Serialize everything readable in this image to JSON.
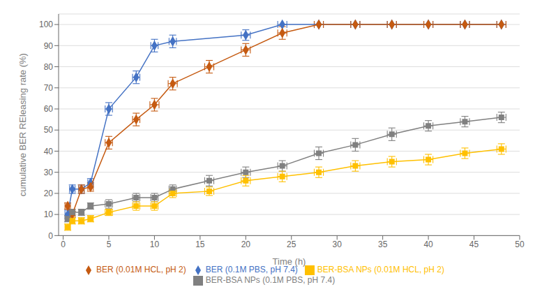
{
  "chart_data": {
    "type": "line",
    "xlabel": "Time (h)",
    "ylabel": "cumulative BER REleasing rate (%)",
    "xlim": [
      -0.5,
      50
    ],
    "ylim": [
      0,
      105
    ],
    "xticks": [
      0,
      5,
      10,
      15,
      20,
      25,
      30,
      35,
      40,
      45,
      50
    ],
    "yticks": [
      0,
      10,
      20,
      30,
      40,
      50,
      60,
      70,
      80,
      90,
      100
    ],
    "grid": true,
    "series": [
      {
        "name": "BER (0.1M PBS, pH 7.4)",
        "color": "#4472C4",
        "marker": "diamond",
        "x": [
          0.5,
          1,
          2,
          3,
          5,
          8,
          10,
          12,
          20,
          24,
          28,
          32,
          36,
          40,
          44,
          48
        ],
        "values": [
          10,
          22,
          22,
          25,
          60,
          75,
          90,
          92,
          95,
          100,
          100,
          100,
          100,
          100,
          100,
          100
        ],
        "xerr": [
          0.3,
          0.3,
          0.3,
          0.3,
          0.4,
          0.4,
          0.4,
          0.4,
          0.5,
          0.5,
          0.5,
          0.5,
          0.5,
          0.5,
          0.5,
          0.5
        ],
        "yerr": [
          2,
          2,
          2,
          2,
          3,
          3,
          3,
          3,
          2.5,
          0,
          0,
          0,
          0,
          0,
          0,
          0
        ]
      },
      {
        "name": "BER (0.01M HCL, pH 2)",
        "color": "#C55A11",
        "marker": "diamond",
        "x": [
          0.5,
          1,
          2,
          3,
          5,
          8,
          10,
          12,
          16,
          20,
          24,
          28,
          32,
          36,
          40,
          44,
          48
        ],
        "values": [
          14,
          10,
          22,
          23,
          44,
          55,
          62,
          72,
          80,
          88,
          96,
          100,
          100,
          100,
          100,
          100,
          100
        ],
        "xerr": [
          0.3,
          0.3,
          0.3,
          0.3,
          0.4,
          0.4,
          0.5,
          0.5,
          0.5,
          0.5,
          0.5,
          0.5,
          0.5,
          0.5,
          0.5,
          0.5,
          0.5
        ],
        "yerr": [
          1.5,
          1.5,
          2,
          2,
          3,
          3,
          3,
          3,
          3,
          3,
          3,
          0,
          0,
          0,
          0,
          0,
          0
        ]
      },
      {
        "name": "BER-BSA NPs (0.1M PBS, pH 7.4)",
        "color": "#808080",
        "marker": "square",
        "x": [
          0.5,
          1,
          2,
          3,
          5,
          8,
          10,
          12,
          16,
          20,
          24,
          28,
          32,
          36,
          40,
          44,
          48
        ],
        "values": [
          8,
          11,
          11,
          14,
          15,
          18,
          18,
          22,
          26,
          30,
          33,
          39,
          43,
          48,
          52,
          54,
          56
        ],
        "xerr": [
          0.3,
          0.3,
          0.3,
          0.3,
          0.4,
          0.4,
          0.4,
          0.4,
          0.5,
          0.5,
          0.5,
          0.5,
          0.5,
          0.5,
          0.5,
          0.5,
          0.5
        ],
        "yerr": [
          1.5,
          1.5,
          1.5,
          1.5,
          2,
          2,
          2,
          2,
          2.5,
          2.5,
          2.5,
          3,
          3,
          3,
          2.5,
          2.5,
          2.5
        ]
      },
      {
        "name": "BER-BSA NPs (0.01M HCL, pH 2)",
        "color": "#FFC000",
        "marker": "square",
        "x": [
          0.5,
          1,
          2,
          3,
          5,
          8,
          10,
          12,
          16,
          20,
          24,
          28,
          32,
          36,
          40,
          44,
          48
        ],
        "values": [
          4,
          7,
          7,
          8,
          11,
          14,
          14,
          20,
          21,
          26,
          28,
          30,
          33,
          35,
          36,
          39,
          41
        ],
        "xerr": [
          0.3,
          0.3,
          0.3,
          0.3,
          0.4,
          0.4,
          0.4,
          0.4,
          0.5,
          0.5,
          0.5,
          0.5,
          0.5,
          0.5,
          0.5,
          0.5,
          0.5
        ],
        "yerr": [
          1.5,
          1.5,
          1.5,
          1.5,
          1.5,
          2,
          2,
          2,
          2,
          2.5,
          2.5,
          2.5,
          2.5,
          2.5,
          2.5,
          2.5,
          2.5
        ]
      }
    ]
  }
}
